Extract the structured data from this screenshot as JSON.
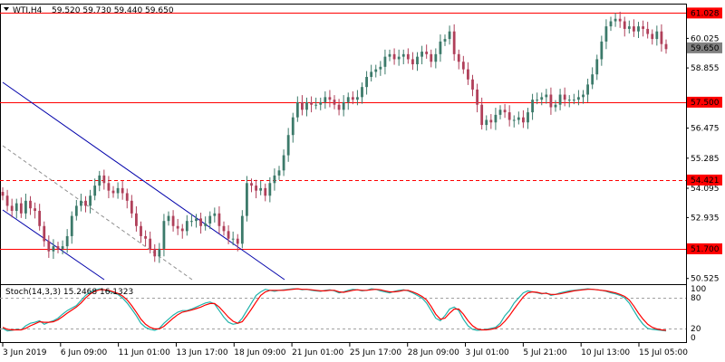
{
  "header": {
    "symbol_label": "WTI,H4",
    "ohlc": "59.520 59.730 59.440 59.650",
    "menu_icon": "triangle-down-icon"
  },
  "indicator": {
    "label": "Stoch(14,3,3) 15.2468 16.1323"
  },
  "colors": {
    "bull_candle": "#3c7a6a",
    "bear_candle": "#b0405a",
    "level_line": "#ff0000",
    "trend_line": "#0000aa",
    "dashed_trend": "#909090",
    "stoch_main": "#20b2aa",
    "stoch_signal": "#ff0000",
    "current_price_bg": "#808080"
  },
  "chart_data": [
    {
      "type": "candlestick",
      "name": "WTI,H4",
      "ylim": [
        50.3,
        61.4
      ],
      "y_ticks": [
        "61.028",
        "60.025",
        "58.855",
        "57.500",
        "56.475",
        "55.285",
        "54.421",
        "54.095",
        "52.935",
        "51.700",
        "50.525"
      ],
      "price_tags": [
        {
          "label": "61.028",
          "value": 61.028,
          "kind": "level"
        },
        {
          "label": "59.650",
          "value": 59.65,
          "kind": "current"
        },
        {
          "label": "57.500",
          "value": 57.5,
          "kind": "level"
        },
        {
          "label": "54.421",
          "value": 54.421,
          "kind": "level"
        },
        {
          "label": "51.700",
          "value": 51.7,
          "kind": "level"
        }
      ],
      "x_labels": [
        "3 Jun 2019",
        "6 Jun 09:00",
        "11 Jun 01:00",
        "13 Jun 17:00",
        "18 Jun 09:00",
        "21 Jun 01:00",
        "25 Jun 17:00",
        "28 Jun 09:00",
        "3 Jul 01:00",
        "5 Jul 21:00",
        "10 Jul 13:00",
        "15 Jul 05:00"
      ],
      "horizontal_levels": [
        {
          "value": 61.028,
          "style": "solid"
        },
        {
          "value": 57.5,
          "style": "solid"
        },
        {
          "value": 54.421,
          "style": "dashed"
        },
        {
          "value": 51.7,
          "style": "solid"
        }
      ],
      "closes": [
        53.8,
        53.4,
        53.2,
        53.5,
        53.1,
        53.6,
        53.3,
        53.2,
        52.6,
        52.0,
        51.6,
        51.8,
        51.7,
        51.8,
        52.2,
        53.0,
        53.4,
        53.6,
        53.4,
        53.8,
        54.2,
        54.6,
        54.3,
        54.0,
        53.9,
        54.1,
        53.9,
        53.6,
        53.1,
        52.6,
        52.2,
        52.1,
        51.7,
        51.4,
        51.7,
        52.8,
        53.0,
        52.6,
        52.5,
        52.4,
        52.8,
        52.8,
        52.9,
        52.6,
        52.7,
        53.0,
        53.1,
        52.6,
        52.4,
        52.1,
        52.1,
        51.9,
        53.0,
        54.3,
        54.2,
        54.0,
        54.1,
        53.8,
        54.3,
        54.6,
        54.8,
        55.4,
        56.2,
        56.9,
        57.5,
        57.2,
        57.5,
        57.4,
        57.4,
        57.5,
        57.7,
        57.6,
        57.4,
        57.2,
        57.5,
        57.7,
        57.6,
        57.7,
        58.1,
        58.5,
        58.7,
        58.8,
        58.9,
        59.3,
        59.4,
        59.2,
        59.3,
        59.4,
        59.2,
        59.0,
        59.3,
        59.5,
        59.4,
        59.1,
        59.4,
        59.9,
        60.0,
        60.3,
        59.4,
        59.1,
        58.8,
        58.4,
        58.0,
        57.4,
        56.6,
        56.8,
        56.7,
        57.0,
        57.2,
        57.1,
        56.8,
        56.8,
        56.9,
        56.7,
        57.1,
        57.6,
        57.6,
        57.7,
        57.8,
        57.3,
        57.4,
        57.8,
        57.6,
        57.6,
        57.6,
        57.7,
        57.8,
        58.2,
        58.6,
        59.2,
        59.9,
        60.5,
        60.7,
        60.8,
        60.7,
        60.4,
        60.5,
        60.3,
        60.5,
        60.4,
        60.2,
        60.0,
        60.3,
        59.8,
        59.6
      ],
      "stochastic": {
        "label": "Stoch(14,3,3)",
        "k": 15.2468,
        "d": 16.1323,
        "levels": [
          80,
          20
        ],
        "axis_labels": [
          "100",
          "80",
          "20",
          "0"
        ],
        "k_series": [
          20,
          15,
          16,
          18,
          17,
          25,
          30,
          32,
          35,
          28,
          32,
          35,
          40,
          48,
          55,
          60,
          65,
          75,
          85,
          92,
          95,
          98,
          96,
          93,
          90,
          87,
          80,
          70,
          58,
          45,
          30,
          22,
          18,
          16,
          20,
          30,
          38,
          46,
          52,
          55,
          55,
          58,
          62,
          66,
          70,
          72,
          68,
          55,
          42,
          32,
          28,
          30,
          40,
          55,
          70,
          85,
          92,
          97,
          95,
          93,
          95,
          96,
          97,
          98,
          98,
          96,
          97,
          95,
          94,
          93,
          95,
          96,
          94,
          90,
          92,
          95,
          97,
          96,
          94,
          95,
          98,
          97,
          94,
          92,
          90,
          93,
          95,
          96,
          94,
          90,
          85,
          80,
          70,
          55,
          40,
          35,
          45,
          58,
          62,
          55,
          38,
          25,
          18,
          16,
          17,
          18,
          20,
          22,
          30,
          45,
          55,
          70,
          80,
          90,
          94,
          92,
          90,
          88,
          90,
          85,
          87,
          90,
          92,
          94,
          95,
          96,
          97,
          98,
          97,
          96,
          95,
          93,
          90,
          88,
          85,
          80,
          70,
          55,
          40,
          28,
          20,
          18,
          17,
          16,
          15
        ],
        "d_series": [
          22,
          18,
          17,
          17,
          17,
          20,
          25,
          29,
          33,
          32,
          32,
          33,
          37,
          43,
          50,
          56,
          62,
          70,
          80,
          88,
          93,
          96,
          96,
          95,
          92,
          89,
          84,
          76,
          65,
          52,
          38,
          28,
          22,
          19,
          19,
          24,
          32,
          40,
          47,
          52,
          54,
          56,
          59,
          62,
          66,
          69,
          69,
          62,
          52,
          42,
          34,
          30,
          33,
          45,
          58,
          72,
          85,
          92,
          95,
          95,
          95,
          95,
          96,
          97,
          98,
          97,
          97,
          96,
          95,
          94,
          94,
          95,
          95,
          92,
          91,
          93,
          95,
          96,
          95,
          95,
          96,
          97,
          96,
          94,
          92,
          92,
          93,
          95,
          95,
          92,
          88,
          83,
          76,
          63,
          48,
          38,
          40,
          50,
          58,
          58,
          48,
          35,
          25,
          19,
          17,
          17,
          18,
          20,
          25,
          34,
          45,
          58,
          70,
          82,
          90,
          92,
          91,
          89,
          89,
          87,
          87,
          88,
          90,
          92,
          94,
          95,
          96,
          97,
          97,
          96,
          95,
          94,
          92,
          90,
          87,
          83,
          76,
          64,
          50,
          38,
          28,
          22,
          19,
          17,
          16
        ]
      }
    }
  ]
}
